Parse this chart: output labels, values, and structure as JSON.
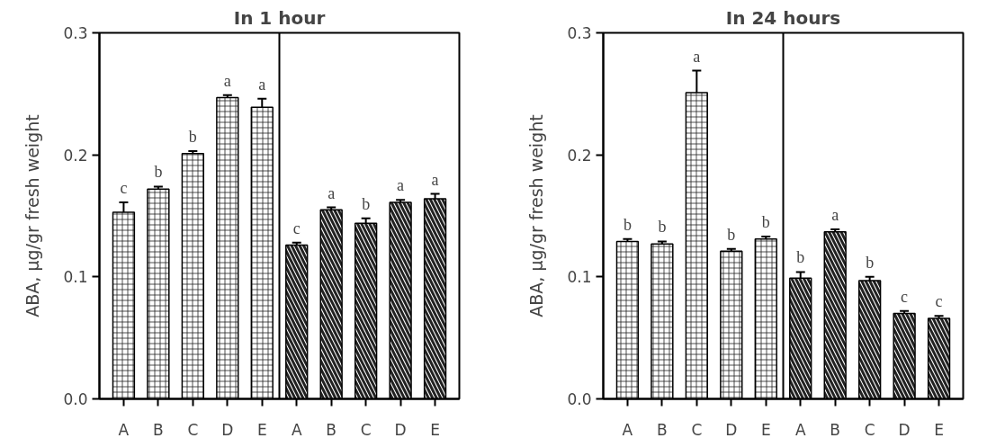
{
  "chart_data": [
    {
      "type": "bar",
      "title": "In 1 hour",
      "ylabel": "ABA, µg/gr fresh weight",
      "categories": [
        "A",
        "B",
        "C",
        "D",
        "E",
        "A",
        "B",
        "C",
        "D",
        "E"
      ],
      "series": [
        {
          "color": "#ffffff",
          "values": [
            0.153,
            0.172,
            0.201,
            0.247,
            0.239,
            null,
            null,
            null,
            null,
            null
          ],
          "errors": [
            0.008,
            0.002,
            0.002,
            0.002,
            0.007,
            null,
            null,
            null,
            null,
            null
          ],
          "value_labels": [
            "c",
            "b",
            "b",
            "a",
            "a",
            null,
            null,
            null,
            null,
            null
          ]
        },
        {
          "color": "#ffffff",
          "values": [
            null,
            null,
            null,
            null,
            null,
            0.126,
            0.155,
            0.144,
            0.161,
            0.164
          ],
          "errors": [
            null,
            null,
            null,
            null,
            null,
            0.002,
            0.002,
            0.004,
            0.002,
            0.004
          ],
          "value_labels": [
            null,
            null,
            null,
            null,
            null,
            "c",
            "a",
            "b",
            "a",
            "a"
          ]
        }
      ],
      "ylim": [
        0,
        0.3
      ],
      "yticks": [
        {
          "value": 0,
          "label": "0.0"
        },
        0.1,
        0.2,
        0.3
      ],
      "grid": false
    },
    {
      "type": "bar",
      "title": "In 24 hours",
      "ylabel": "ABA, µg/gr fresh weight",
      "categories": [
        "A",
        "B",
        "C",
        "D",
        "E",
        "A",
        "B",
        "C",
        "D",
        "E"
      ],
      "series": [
        {
          "color": "#ffffff",
          "values": [
            0.129,
            0.127,
            0.251,
            0.121,
            0.131,
            null,
            null,
            null,
            null,
            null
          ],
          "errors": [
            0.002,
            0.002,
            0.018,
            0.002,
            0.002,
            null,
            null,
            null,
            null,
            null
          ],
          "value_labels": [
            "b",
            "b",
            "a",
            "b",
            "b",
            null,
            null,
            null,
            null,
            null
          ]
        },
        {
          "color": "#ffffff",
          "values": [
            null,
            null,
            null,
            null,
            null,
            0.099,
            0.137,
            0.097,
            0.07,
            0.066
          ],
          "errors": [
            null,
            null,
            null,
            null,
            null,
            0.005,
            0.002,
            0.003,
            0.002,
            0.002
          ],
          "value_labels": [
            null,
            null,
            null,
            null,
            null,
            "b",
            "a",
            "b",
            "c",
            "c"
          ]
        }
      ],
      "ylim": [
        0,
        0.3
      ],
      "yticks": [
        {
          "value": 0,
          "label": "0.0"
        },
        0.1,
        0.2,
        0.3
      ],
      "grid": false
    }
  ]
}
